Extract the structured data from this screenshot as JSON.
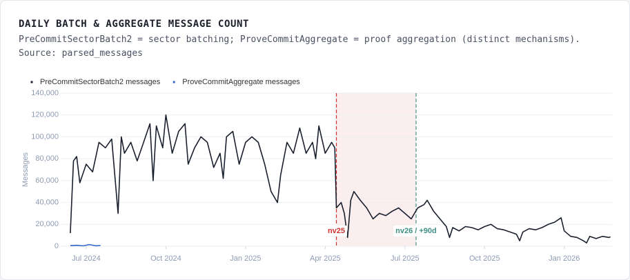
{
  "chart_data": {
    "type": "line",
    "title": "DAILY BATCH & AGGREGATE MESSAGE COUNT",
    "subtitle": "PreCommitSectorBatch2 = sector batching; ProveCommitAggregate = proof aggregation (distinct mechanisms). Source: parsed_messages",
    "y_label": "Messages",
    "xlim": [
      2024.42,
      2026.15
    ],
    "xticks": [
      {
        "value": 2024.5,
        "label": "Jul 2024"
      },
      {
        "value": 2024.75,
        "label": "Oct 2024"
      },
      {
        "value": 2025.0,
        "label": "Jan 2025"
      },
      {
        "value": 2025.25,
        "label": "Apr 2025"
      },
      {
        "value": 2025.5,
        "label": "Jul 2025"
      },
      {
        "value": 2025.75,
        "label": "Oct 2025"
      },
      {
        "value": 2026.0,
        "label": "Jan 2026"
      }
    ],
    "ylim": [
      0,
      140000
    ],
    "yticks": [
      0,
      {
        "value": 20000,
        "label": "20,000"
      },
      {
        "value": 40000,
        "label": "40,000"
      },
      {
        "value": 60000,
        "label": "60,000"
      },
      {
        "value": 80000,
        "label": "80,000"
      },
      {
        "value": 100000,
        "label": "100,000"
      },
      {
        "value": 120000,
        "label": "120,000"
      },
      {
        "value": 140000,
        "label": "140,000"
      }
    ],
    "grid": true,
    "legend": "top-left",
    "series": [
      {
        "name": "PreCommitSectorBatch2 messages",
        "color": "#1a1f2e",
        "x": [
          2024.45,
          2024.46,
          2024.47,
          2024.48,
          2024.5,
          2024.52,
          2024.54,
          2024.56,
          2024.58,
          2024.6,
          2024.61,
          2024.62,
          2024.64,
          2024.66,
          2024.68,
          2024.7,
          2024.71,
          2024.72,
          2024.74,
          2024.75,
          2024.77,
          2024.79,
          2024.81,
          2024.82,
          2024.84,
          2024.86,
          2024.88,
          2024.9,
          2024.92,
          2024.93,
          2024.94,
          2024.96,
          2024.98,
          2025.0,
          2025.02,
          2025.04,
          2025.06,
          2025.08,
          2025.1,
          2025.11,
          2025.13,
          2025.15,
          2025.17,
          2025.19,
          2025.21,
          2025.22,
          2025.23,
          2025.25,
          2025.27,
          2025.28,
          2025.285,
          2025.3,
          2025.31,
          2025.32,
          2025.33,
          2025.34,
          2025.36,
          2025.38,
          2025.4,
          2025.42,
          2025.44,
          2025.46,
          2025.48,
          2025.5,
          2025.52,
          2025.54,
          2025.56,
          2025.57,
          2025.59,
          2025.61,
          2025.63,
          2025.64,
          2025.65,
          2025.67,
          2025.69,
          2025.71,
          2025.73,
          2025.75,
          2025.77,
          2025.79,
          2025.81,
          2025.83,
          2025.85,
          2025.86,
          2025.87,
          2025.89,
          2025.91,
          2025.93,
          2025.95,
          2025.97,
          2025.99,
          2026.0,
          2026.02,
          2026.04,
          2026.06,
          2026.07,
          2026.08,
          2026.1,
          2026.12,
          2026.14,
          2026.145
        ],
        "values": [
          12000,
          78000,
          82000,
          58000,
          75000,
          68000,
          95000,
          90000,
          98000,
          30000,
          100000,
          85000,
          95000,
          78000,
          95000,
          112000,
          60000,
          110000,
          90000,
          120000,
          85000,
          105000,
          112000,
          75000,
          90000,
          100000,
          95000,
          72000,
          85000,
          62000,
          100000,
          105000,
          75000,
          95000,
          100000,
          95000,
          75000,
          50000,
          40000,
          65000,
          95000,
          85000,
          108000,
          85000,
          95000,
          80000,
          110000,
          85000,
          95000,
          90000,
          35000,
          40000,
          30000,
          8000,
          42000,
          50000,
          42000,
          35000,
          25000,
          30000,
          28000,
          32000,
          35000,
          30000,
          25000,
          35000,
          38000,
          42000,
          32000,
          25000,
          18000,
          8000,
          17000,
          14000,
          18000,
          17000,
          15000,
          18000,
          20000,
          16000,
          15000,
          13000,
          11000,
          5000,
          13000,
          16000,
          15000,
          17000,
          20000,
          22000,
          26000,
          14000,
          9000,
          8000,
          5000,
          3000,
          9000,
          7000,
          9000,
          8000,
          8500
        ]
      },
      {
        "name": "ProveCommitAggregate messages",
        "color": "#3366cc",
        "x": [
          2024.45,
          2024.47,
          2024.49,
          2024.51,
          2024.53,
          2024.545
        ],
        "values": [
          500,
          800,
          300,
          1500,
          400,
          600
        ]
      }
    ],
    "annotations": [
      {
        "x": 2025.285,
        "label": "nv25",
        "color": "#d32f2f"
      },
      {
        "x": 2025.535,
        "label": "nv26 / +90d",
        "color": "#3f8f86"
      }
    ],
    "shade_color": "#fbeeee"
  }
}
